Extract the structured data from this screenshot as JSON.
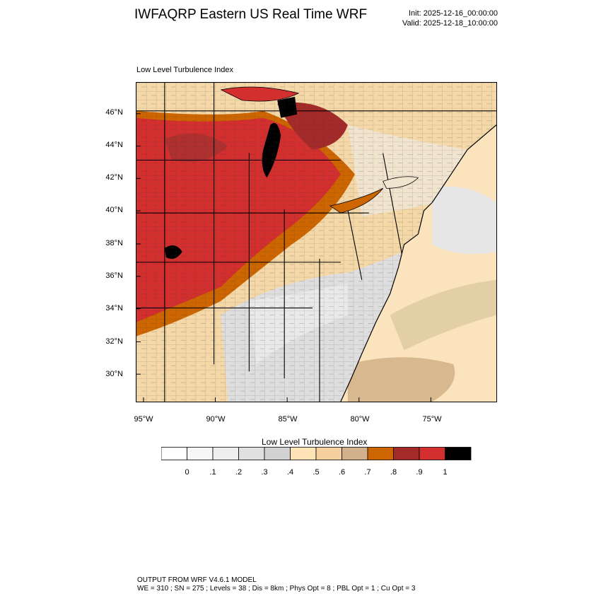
{
  "header": {
    "title": "IWFAQRP Eastern US Real Time WRF",
    "init": "Init: 2025-12-16_00:00:00",
    "valid": "Valid: 2025-12-18_10:00:00"
  },
  "plot": {
    "label": "Low Level Turbulence Index",
    "lat_labels": [
      "46°N",
      "44°N",
      "42°N",
      "40°N",
      "38°N",
      "36°N",
      "34°N",
      "32°N",
      "30°N"
    ],
    "lon_labels": [
      "95°W",
      "90°W",
      "85°W",
      "80°W",
      "75°W"
    ]
  },
  "colorbar": {
    "title": "Low Level Turbulence Index",
    "tick_labels": [
      "0",
      ".1",
      ".2",
      ".3",
      ".4",
      ".5",
      ".6",
      ".7",
      ".8",
      ".9",
      "1"
    ],
    "colors": [
      "#ffffff",
      "#f7f7f7",
      "#eeeeee",
      "#e0e0e0",
      "#d2d2d2",
      "#fde3b5",
      "#f5cf9d",
      "#d3b08c",
      "#cd6600",
      "#a52a2a",
      "#d32f2f",
      "#000000"
    ]
  },
  "footer": {
    "line1": "OUTPUT FROM WRF V4.6.1 MODEL",
    "line2": "WE = 310 ; SN = 275 ; Levels = 38 ; Dis = 8km ; Phys Opt = 8 ; PBL Opt = 1 ; Cu Opt = 3"
  }
}
